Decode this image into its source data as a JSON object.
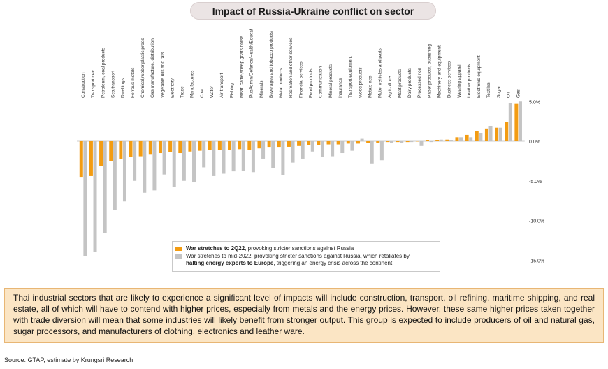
{
  "title": "Impact of Russia-Ukraine conflict on sector",
  "chart_data": {
    "type": "bar",
    "categories": [
      "Construction",
      "Transport nec",
      "Petroleum, coal products",
      "Sea transport",
      "Dwellings",
      "Ferrous metals",
      "Chemical,rubber,plastic prods",
      "Gas manufacture, distribution",
      "Vegetable oils and fats",
      "Electricity",
      "Trade",
      "Manufactures",
      "Coal",
      "Water",
      "Air transport",
      "Fishing",
      "Meat: cattle,sheep,goats,horse",
      "PubAdmin/Defence/Health/Educat",
      "Minerals",
      "Beverages and tobacco products",
      "Metal products",
      "Recreation and other services",
      "Financial services",
      "Food products",
      "Communication",
      "Mineral products",
      "Insurance",
      "Transport equipment",
      "Wood products",
      "Metals nec",
      "Motor vehicles and parts",
      "Agriculture",
      "Meat products",
      "Dairy products",
      "Processed rice",
      "Paper products, publishing",
      "Machinery and equipment",
      "Business services",
      "Wearing apparel",
      "Leather products",
      "Electronic equipment",
      "Textiles",
      "Sugar",
      "Oil",
      "Gas"
    ],
    "series": [
      {
        "name": "War stretches to 2Q22, provoking stricter sanctions against Russia",
        "color": "#f39c12",
        "values": [
          -4.5,
          -4.4,
          -3.1,
          -2.5,
          -2.2,
          -2.0,
          -1.9,
          -1.7,
          -1.5,
          -1.4,
          -1.5,
          -1.3,
          -1.2,
          -1.1,
          -1.1,
          -1.1,
          -1.0,
          -1.1,
          -0.9,
          -0.8,
          -0.8,
          -0.7,
          -0.6,
          -0.5,
          -0.5,
          -0.4,
          -0.4,
          -0.3,
          -0.3,
          -0.2,
          -0.2,
          -0.1,
          -0.1,
          -0.1,
          0.0,
          0.1,
          0.1,
          0.2,
          0.5,
          0.8,
          1.3,
          1.6,
          1.7,
          2.4,
          4.7
        ]
      },
      {
        "name": "War stretches to mid-2022, provoking stricter sanctions against Russia, which retaliates by halting energy exports to Europe, triggering an energy crisis across the continent",
        "color": "#c4c4c4",
        "values": [
          -14.5,
          -14.0,
          -11.6,
          -8.7,
          -7.6,
          -5.0,
          -6.5,
          -6.2,
          -4.2,
          -5.8,
          -5.0,
          -5.2,
          -3.3,
          -4.4,
          -4.1,
          -3.8,
          -3.7,
          -3.9,
          -2.2,
          -3.4,
          -4.3,
          -2.7,
          -2.2,
          -1.3,
          -2.0,
          -1.9,
          -1.5,
          -1.2,
          0.3,
          -2.8,
          -2.4,
          -0.2,
          -0.2,
          -0.1,
          -0.6,
          -0.1,
          0.2,
          0.1,
          0.5,
          0.5,
          1.0,
          1.9,
          1.7,
          4.8,
          5.0
        ]
      }
    ],
    "yticks": [
      5,
      0,
      -5,
      -10,
      -15
    ],
    "ytick_labels": [
      "5.0%",
      "0.0%",
      "-5.0%",
      "-10.0%",
      "-15.0%"
    ],
    "ylim": [
      -15,
      5
    ],
    "grid": false,
    "legend_position": "bottom-center"
  },
  "legend": {
    "item1_bold": "War stretches to 2Q22",
    "item1_rest": ", provoking stricter sanctions against Russia",
    "item2_line1": "War stretches to mid-2022, provoking stricter sanctions against Russia, which retaliates by",
    "item2_bold": "halting energy exports to Europe",
    "item2_rest": ", triggering an energy crisis across the continent"
  },
  "note": "Thai industrial sectors that are likely to experience a significant level of impacts will include construction, transport, oil refining, maritime shipping, and real estate, all of which will have to contend with higher prices, especially from metals and the energy prices. However, these same higher prices taken together with trade diversion will mean that some industries will likely benefit from stronger output. This group is expected to include producers of oil and natural gas, sugar processors, and manufacturers of clothing, electronics and leather ware.",
  "source": "Source: GTAP, estimate by Krungsri Research"
}
